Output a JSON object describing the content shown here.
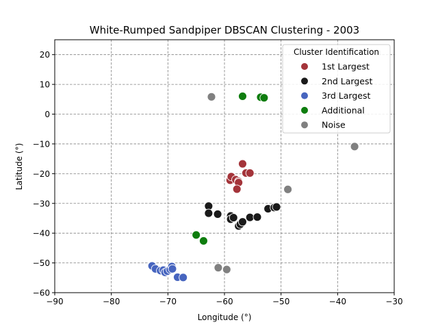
{
  "chart_data": {
    "type": "scatter",
    "title": "White-Rumped Sandpiper DBSCAN Clustering - 2003",
    "xlabel": "Longitude (°)",
    "ylabel": "Latitude (°)",
    "xlim": [
      -90,
      -30
    ],
    "ylim": [
      -60,
      25
    ],
    "xticks": [
      -90,
      -80,
      -70,
      -60,
      -50,
      -40,
      -30
    ],
    "yticks": [
      -60,
      -50,
      -40,
      -30,
      -20,
      -10,
      0,
      10,
      20
    ],
    "grid": true,
    "legend": {
      "title": "Cluster Identification",
      "position": "top-right"
    },
    "series": [
      {
        "name": "1st Largest",
        "color": "#a4343a",
        "points": [
          [
            -56.8,
            -16.7
          ],
          [
            -56.2,
            -19.8
          ],
          [
            -55.5,
            -19.8
          ],
          [
            -59.0,
            -22.2
          ],
          [
            -58.8,
            -21.0
          ],
          [
            -58.0,
            -22.0
          ],
          [
            -57.5,
            -22.6
          ],
          [
            -57.5,
            -23.0
          ],
          [
            -57.8,
            -25.2
          ]
        ]
      },
      {
        "name": "2nd Largest",
        "color": "#1a1a1a",
        "points": [
          [
            -62.8,
            -30.9
          ],
          [
            -62.8,
            -33.3
          ],
          [
            -61.2,
            -33.6
          ],
          [
            -58.9,
            -34.2
          ],
          [
            -58.9,
            -35.3
          ],
          [
            -58.4,
            -34.8
          ],
          [
            -57.5,
            -37.6
          ],
          [
            -57.2,
            -37.0
          ],
          [
            -56.8,
            -36.2
          ],
          [
            -55.5,
            -34.7
          ],
          [
            -54.2,
            -34.6
          ],
          [
            -52.3,
            -31.8
          ],
          [
            -51.2,
            -31.4
          ],
          [
            -50.8,
            -31.2
          ]
        ]
      },
      {
        "name": "3rd Largest",
        "color": "#4765bf",
        "points": [
          [
            -72.8,
            -51.0
          ],
          [
            -72.2,
            -52.0
          ],
          [
            -71.3,
            -52.6
          ],
          [
            -70.8,
            -52.4
          ],
          [
            -70.5,
            -53.2
          ],
          [
            -70.1,
            -52.8
          ],
          [
            -69.6,
            -52.2
          ],
          [
            -69.3,
            -51.2
          ],
          [
            -69.2,
            -52.0
          ],
          [
            -68.3,
            -54.8
          ],
          [
            -67.3,
            -54.9
          ]
        ]
      },
      {
        "name": "Additional",
        "color": "#0e7d0e",
        "points": [
          [
            -56.8,
            6.0
          ],
          [
            -53.6,
            5.7
          ],
          [
            -53.0,
            5.5
          ],
          [
            -65.0,
            -40.6
          ],
          [
            -63.7,
            -42.6
          ]
        ]
      },
      {
        "name": "Noise",
        "color": "#808080",
        "points": [
          [
            -62.3,
            5.8
          ],
          [
            -37.0,
            -10.9
          ],
          [
            -48.8,
            -25.3
          ],
          [
            -61.1,
            -51.6
          ],
          [
            -59.6,
            -52.2
          ]
        ]
      }
    ]
  }
}
